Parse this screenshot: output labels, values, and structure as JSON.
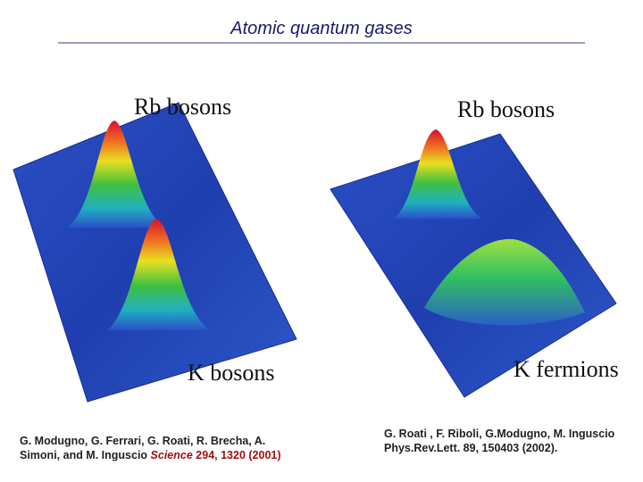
{
  "title": "Atomic quantum gases",
  "panels": [
    {
      "labels": [
        "Rb bosons",
        "K bosons"
      ],
      "citation": {
        "authors": "G. Modugno, G. Ferrari, G. Roati, R. Brecha, A. Simoni, and M. Inguscio",
        "journal": "Science",
        "reference": "294, 1320 (2001)"
      }
    },
    {
      "labels": [
        "Rb bosons",
        "K fermions"
      ],
      "citation": {
        "text": "G. Roati , F. Riboli, G.Modugno, M. Inguscio Phys.Rev.Lett. 89, 150403 (2002)."
      }
    }
  ]
}
